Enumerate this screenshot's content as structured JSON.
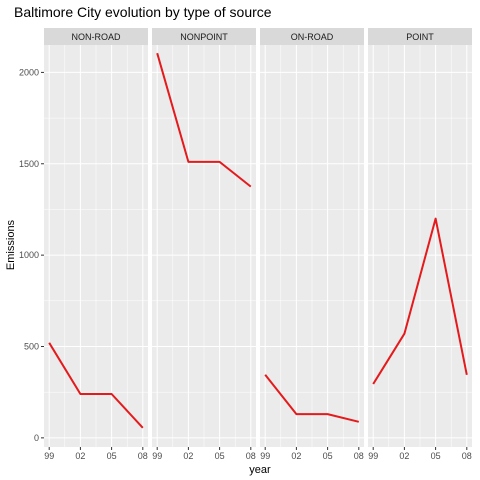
{
  "chart_data": {
    "type": "line",
    "title": "Baltimore City evolution by type of source",
    "xlabel": "year",
    "ylabel": "Emissions",
    "x": [
      "99",
      "02",
      "05",
      "08"
    ],
    "ylim": [
      -50,
      2150
    ],
    "yticks": [
      0,
      500,
      1000,
      1500,
      2000
    ],
    "facets": [
      {
        "name": "NON-ROAD",
        "values": [
          520,
          240,
          240,
          55
        ]
      },
      {
        "name": "NONPOINT",
        "values": [
          2105,
          1510,
          1510,
          1375
        ]
      },
      {
        "name": "ON-ROAD",
        "values": [
          345,
          130,
          130,
          88
        ]
      },
      {
        "name": "POINT",
        "values": [
          295,
          570,
          1200,
          345
        ]
      }
    ],
    "line_color": "#e41a1c",
    "panel_background": "#ebebeb",
    "strip_background": "#d9d9d9",
    "grid": true
  }
}
